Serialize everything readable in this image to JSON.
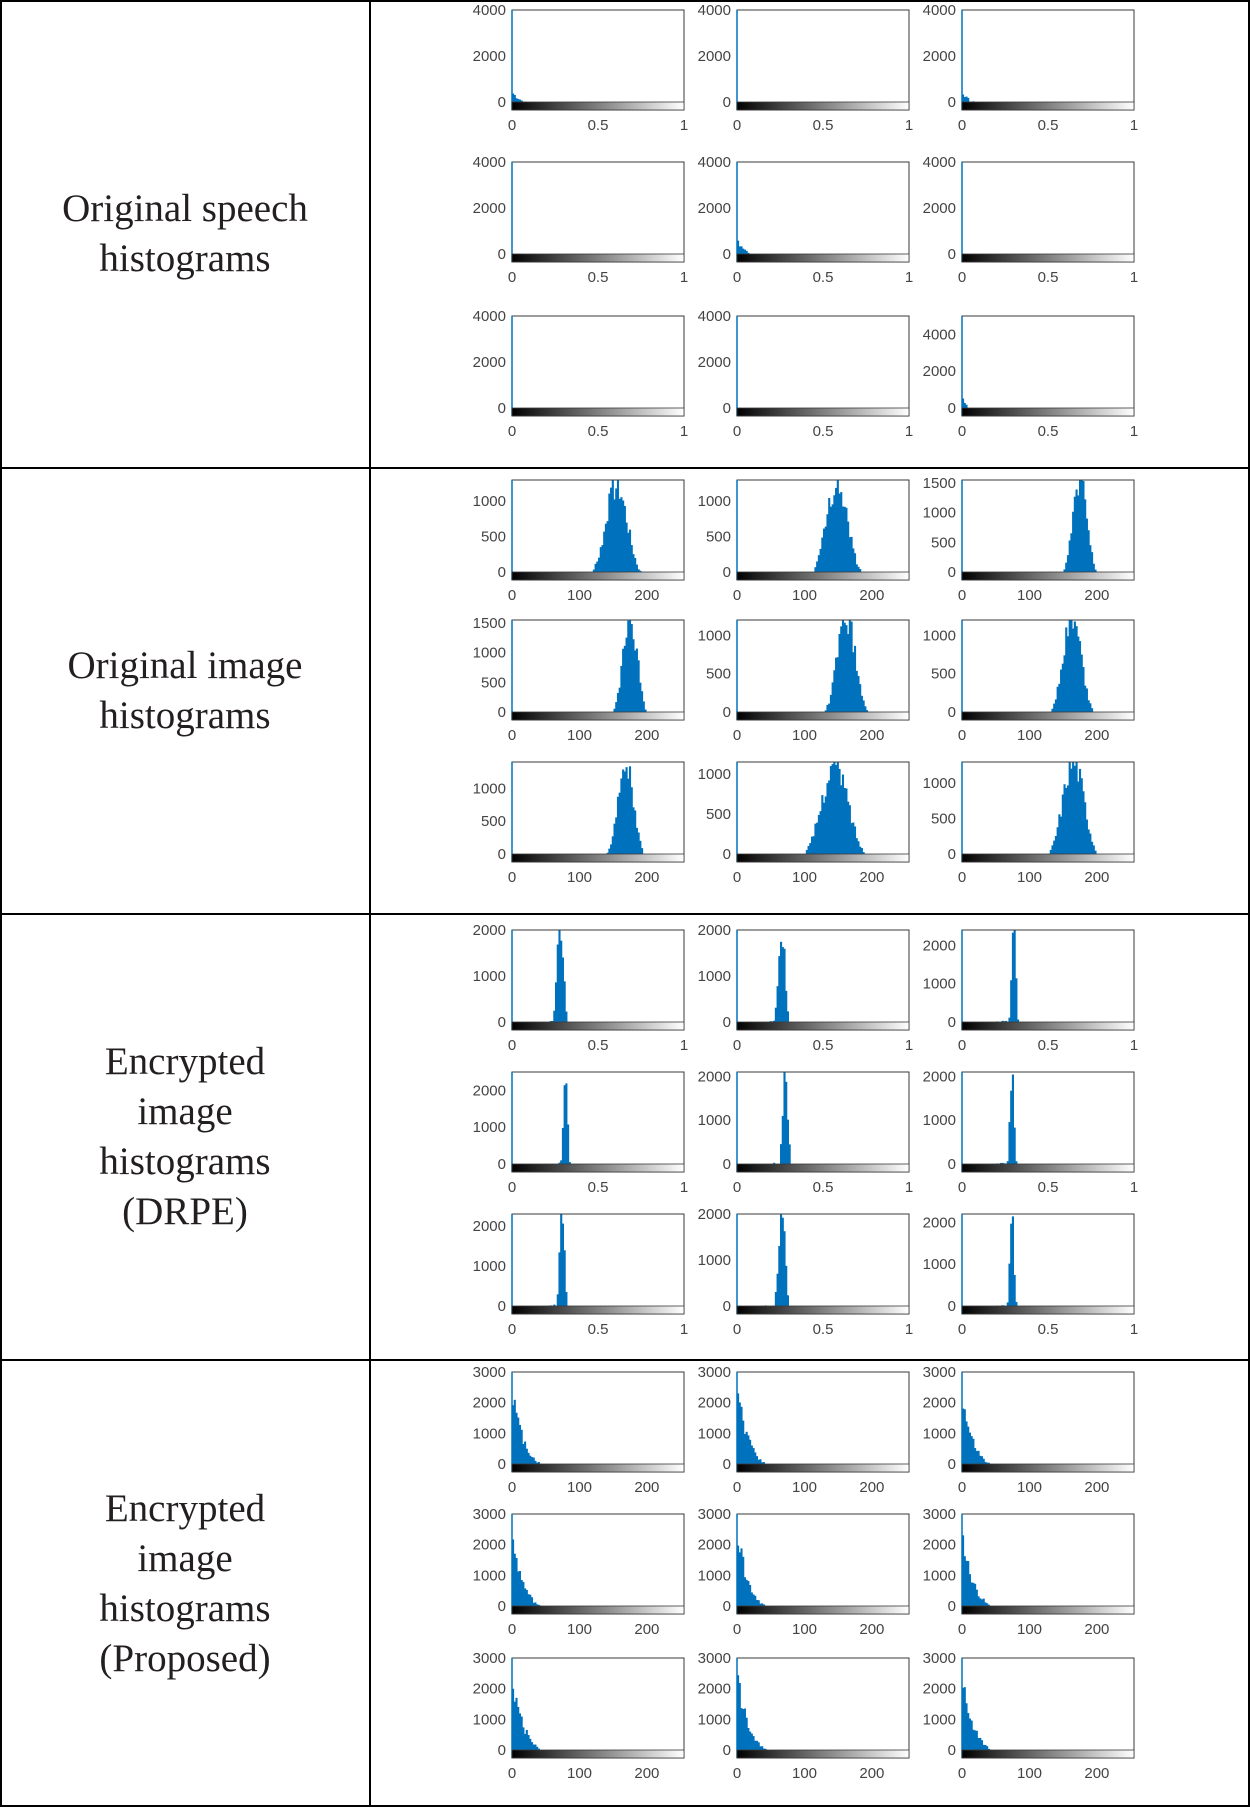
{
  "colors": {
    "bar": "#0072bd",
    "axis": "#3a3a3a",
    "text": "#444444",
    "border": "#000000"
  },
  "rows": [
    {
      "label": "Original speech\nhistograms"
    },
    {
      "label": "Original image\nhistograms"
    },
    {
      "label": "Encrypted\nimage\nhistograms\n(DRPE)"
    },
    {
      "label": "Encrypted\nimage\nhistograms\n(Proposed)"
    }
  ],
  "chart_data": [
    {
      "type": "bar",
      "title": "Original speech histograms",
      "grid": "3x3",
      "xlim": [
        0,
        1
      ],
      "ylim": [
        0,
        4000
      ],
      "xticks": [
        "0",
        "0.5",
        "1"
      ],
      "yticks": [
        "0",
        "2000",
        "4000"
      ],
      "colorbar": "gray",
      "panels": [
        {
          "peak": 700,
          "shape": "decay",
          "decay": 0.09,
          "yticks": [
            "0",
            "2000",
            "4000"
          ]
        },
        {
          "peak": 300,
          "shape": "decay",
          "decay": 0.22,
          "yticks": [
            "0",
            "2000",
            "4000"
          ]
        },
        {
          "peak": 650,
          "shape": "decay",
          "decay": 0.09,
          "yticks": [
            "0",
            "2000",
            "4000"
          ]
        },
        {
          "peak": 400,
          "shape": "decay",
          "decay": 0.16,
          "yticks": [
            "0",
            "2000",
            "4000"
          ]
        },
        {
          "peak": 900,
          "shape": "decay",
          "decay": 0.07,
          "yticks": [
            "0",
            "2000",
            "4000"
          ]
        },
        {
          "peak": 250,
          "shape": "decay",
          "decay": 0.28,
          "yticks": [
            "0",
            "2000",
            "4000"
          ]
        },
        {
          "peak": 250,
          "shape": "decay",
          "decay": 0.24,
          "yticks": [
            "0",
            "2000",
            "4000"
          ]
        },
        {
          "peak": 350,
          "shape": "decay",
          "decay": 0.14,
          "yticks": [
            "0",
            "2000",
            "4000"
          ]
        },
        {
          "peak": 950,
          "shape": "decay",
          "decay": 0.04,
          "yticks": [
            "0",
            "2000",
            "4000"
          ],
          "ylim": [
            0,
            5000
          ]
        }
      ]
    },
    {
      "type": "bar",
      "title": "Original image histograms",
      "grid": "3x3",
      "xlim": [
        0,
        255
      ],
      "xticks": [
        "0",
        "100",
        "200"
      ],
      "colorbar": "gray",
      "panels": [
        {
          "ylim": [
            0,
            1300
          ],
          "yticks": [
            "0",
            "500",
            "1000"
          ],
          "shape": "bell",
          "mean": 155,
          "sd": 16,
          "peak": 1250
        },
        {
          "ylim": [
            0,
            1300
          ],
          "yticks": [
            "0",
            "500",
            "1000"
          ],
          "shape": "bell",
          "mean": 148,
          "sd": 16,
          "peak": 1250
        },
        {
          "ylim": [
            0,
            1550
          ],
          "yticks": [
            "0",
            "500",
            "1000",
            "1500"
          ],
          "shape": "bell",
          "mean": 175,
          "sd": 11,
          "peak": 1550
        },
        {
          "ylim": [
            0,
            1550
          ],
          "yticks": [
            "0",
            "500",
            "1000",
            "1500"
          ],
          "shape": "bell",
          "mean": 175,
          "sd": 11,
          "peak": 1550
        },
        {
          "ylim": [
            0,
            1200
          ],
          "yticks": [
            "0",
            "500",
            "1000"
          ],
          "shape": "bell",
          "mean": 162,
          "sd": 14,
          "peak": 1200
        },
        {
          "ylim": [
            0,
            1200
          ],
          "yticks": [
            "0",
            "500",
            "1000"
          ],
          "shape": "bell",
          "mean": 163,
          "sd": 14,
          "peak": 1200
        },
        {
          "ylim": [
            0,
            1400
          ],
          "yticks": [
            "0",
            "500",
            "1000"
          ],
          "shape": "bell",
          "mean": 168,
          "sd": 12,
          "peak": 1400
        },
        {
          "ylim": [
            0,
            1150
          ],
          "yticks": [
            "0",
            "500",
            "1000"
          ],
          "shape": "bell",
          "mean": 145,
          "sd": 20,
          "peak": 1100
        },
        {
          "ylim": [
            0,
            1300
          ],
          "yticks": [
            "0",
            "500",
            "1000"
          ],
          "shape": "bell",
          "mean": 165,
          "sd": 16,
          "peak": 1300
        }
      ]
    },
    {
      "type": "bar",
      "title": "Encrypted image histograms (DRPE)",
      "grid": "3x3",
      "xlim": [
        0,
        1
      ],
      "xticks": [
        "0",
        "0.5",
        "1"
      ],
      "colorbar": "gray",
      "panels": [
        {
          "ylim": [
            0,
            2000
          ],
          "yticks": [
            "0",
            "1000",
            "2000"
          ],
          "shape": "spike",
          "mean": 0.28,
          "sd": 0.02,
          "peak": 2000
        },
        {
          "ylim": [
            0,
            2000
          ],
          "yticks": [
            "0",
            "1000",
            "2000"
          ],
          "shape": "spike",
          "mean": 0.26,
          "sd": 0.02,
          "peak": 2000
        },
        {
          "ylim": [
            0,
            2400
          ],
          "yticks": [
            "0",
            "1000",
            "2000"
          ],
          "shape": "spike",
          "mean": 0.3,
          "sd": 0.012,
          "peak": 2400
        },
        {
          "ylim": [
            0,
            2500
          ],
          "yticks": [
            "0",
            "1000",
            "2000"
          ],
          "shape": "spike",
          "mean": 0.31,
          "sd": 0.012,
          "peak": 2500
        },
        {
          "ylim": [
            0,
            2100
          ],
          "yticks": [
            "0",
            "1000",
            "2000"
          ],
          "shape": "spike",
          "mean": 0.28,
          "sd": 0.015,
          "peak": 2100
        },
        {
          "ylim": [
            0,
            2100
          ],
          "yticks": [
            "0",
            "1000",
            "2000"
          ],
          "shape": "spike",
          "mean": 0.29,
          "sd": 0.012,
          "peak": 2100
        },
        {
          "ylim": [
            0,
            2300
          ],
          "yticks": [
            "0",
            "1000",
            "2000"
          ],
          "shape": "spike",
          "mean": 0.29,
          "sd": 0.014,
          "peak": 2300
        },
        {
          "ylim": [
            0,
            2000
          ],
          "yticks": [
            "0",
            "1000",
            "2000"
          ],
          "shape": "spike",
          "mean": 0.26,
          "sd": 0.02,
          "peak": 2000
        },
        {
          "ylim": [
            0,
            2200
          ],
          "yticks": [
            "0",
            "1000",
            "2000"
          ],
          "shape": "spike",
          "mean": 0.29,
          "sd": 0.012,
          "peak": 2200
        }
      ]
    },
    {
      "type": "bar",
      "title": "Encrypted image histograms (Proposed)",
      "grid": "3x3",
      "xlim": [
        0,
        255
      ],
      "ylim": [
        0,
        3000
      ],
      "xticks": [
        "0",
        "100",
        "200"
      ],
      "yticks": [
        "0",
        "1000",
        "2000",
        "3000"
      ],
      "colorbar": "gray",
      "panels": [
        {
          "shape": "decay",
          "peak": 2450,
          "decay": 18,
          "yticks": [
            "0",
            "1000",
            "2000",
            "3000"
          ]
        },
        {
          "shape": "decay",
          "peak": 2450,
          "decay": 18,
          "yticks": [
            "0",
            "1000",
            "2000",
            "3000"
          ]
        },
        {
          "shape": "decay",
          "peak": 2300,
          "decay": 18,
          "yticks": [
            "0",
            "1000",
            "2000",
            "3000"
          ]
        },
        {
          "shape": "decay",
          "peak": 2300,
          "decay": 18,
          "yticks": [
            "0",
            "1000",
            "2000",
            "3000"
          ]
        },
        {
          "shape": "decay",
          "peak": 2450,
          "decay": 18,
          "yticks": [
            "0",
            "1000",
            "2000",
            "3000"
          ]
        },
        {
          "shape": "decay",
          "peak": 2400,
          "decay": 18,
          "yticks": [
            "0",
            "1000",
            "2000",
            "3000"
          ]
        },
        {
          "shape": "decay",
          "peak": 2450,
          "decay": 18,
          "yticks": [
            "0",
            "1000",
            "2000",
            "3000"
          ]
        },
        {
          "shape": "decay",
          "peak": 2500,
          "decay": 18,
          "yticks": [
            "0",
            "1000",
            "2000",
            "3000"
          ]
        },
        {
          "shape": "decay",
          "peak": 2450,
          "decay": 18,
          "yticks": [
            "0",
            "1000",
            "2000",
            "3000"
          ]
        }
      ]
    }
  ]
}
